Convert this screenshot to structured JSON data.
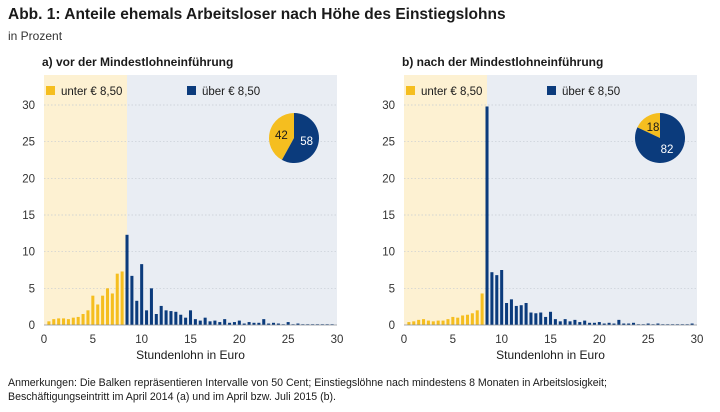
{
  "header": {
    "title": "Abb. 1: Anteile ehemals Arbeitsloser nach Höhe des Einstiegslohns",
    "subtitle": "in Prozent"
  },
  "notes": {
    "line1": "Anmerkungen: Die Balken repräsentieren Intervalle von 50 Cent; Einstiegslöhne nach mindestens 8 Monaten in Arbeitslosigkeit;",
    "line2": "Beschäftigungseintritt im April 2014 (a) und im April bzw. Juli 2015 (b)."
  },
  "colors": {
    "below": "#f5be1f",
    "above": "#0b3b7c",
    "shade_below": "#fdf1d2",
    "shade_above": "#e9edf3",
    "grid": "#c5cbd3"
  },
  "chart_data": [
    {
      "type": "bar",
      "title": "a) vor der Mindestlohneinführung",
      "xlabel": "Stundenlohn in Euro",
      "ylabel": "",
      "xlim": [
        0,
        30
      ],
      "ylim": [
        0,
        30
      ],
      "xticks": [
        0,
        5,
        10,
        15,
        20,
        25,
        30
      ],
      "yticks": [
        0,
        5,
        10,
        15,
        20,
        25,
        30
      ],
      "threshold": 8.5,
      "legend": [
        {
          "label": "unter € 8,50",
          "color": "#f5be1f"
        },
        {
          "label": "über € 8,50",
          "color": "#0b3b7c"
        }
      ],
      "pie": [
        {
          "label": "42",
          "value": 42,
          "color": "#f5be1f"
        },
        {
          "label": "58",
          "value": 58,
          "color": "#0b3b7c"
        }
      ],
      "x": [
        0.5,
        1.0,
        1.5,
        2.0,
        2.5,
        3.0,
        3.5,
        4.0,
        4.5,
        5.0,
        5.5,
        6.0,
        6.5,
        7.0,
        7.5,
        8.0,
        8.5,
        9.0,
        9.5,
        10.0,
        10.5,
        11.0,
        11.5,
        12.0,
        12.5,
        13.0,
        13.5,
        14.0,
        14.5,
        15.0,
        15.5,
        16.0,
        16.5,
        17.0,
        17.5,
        18.0,
        18.5,
        19.0,
        19.5,
        20.0,
        20.5,
        21.0,
        21.5,
        22.0,
        22.5,
        23.0,
        23.5,
        24.0,
        24.5,
        25.0,
        25.5,
        26.0,
        26.5,
        27.0,
        27.5,
        28.0,
        28.5,
        29.0,
        29.5
      ],
      "values": [
        0.5,
        0.8,
        0.9,
        0.9,
        0.8,
        1.0,
        1.1,
        1.5,
        2.0,
        4.0,
        2.8,
        4.0,
        5.0,
        4.3,
        7.0,
        7.3,
        12.3,
        6.7,
        3.3,
        8.3,
        2.0,
        5.0,
        1.5,
        2.6,
        2.0,
        1.9,
        1.8,
        1.4,
        1.0,
        2.0,
        0.8,
        0.6,
        1.0,
        0.5,
        0.6,
        0.4,
        0.8,
        0.3,
        0.4,
        0.6,
        0.2,
        0.4,
        0.3,
        0.3,
        0.8,
        0.2,
        0.3,
        0.2,
        0.1,
        0.4,
        0.1,
        0.2,
        0.1,
        0.1,
        0.1,
        0.1,
        0.1,
        0.1,
        0.1
      ]
    },
    {
      "type": "bar",
      "title": "b) nach der Mindestlohneinführung",
      "xlabel": "Stundenlohn in Euro",
      "ylabel": "",
      "xlim": [
        0,
        30
      ],
      "ylim": [
        0,
        30
      ],
      "xticks": [
        0,
        5,
        10,
        15,
        20,
        25,
        30
      ],
      "yticks": [
        0,
        5,
        10,
        15,
        20,
        25,
        30
      ],
      "threshold": 8.5,
      "legend": [
        {
          "label": "unter € 8,50",
          "color": "#f5be1f"
        },
        {
          "label": "über € 8,50",
          "color": "#0b3b7c"
        }
      ],
      "pie": [
        {
          "label": "18",
          "value": 18,
          "color": "#f5be1f"
        },
        {
          "label": "82",
          "value": 82,
          "color": "#0b3b7c"
        }
      ],
      "x": [
        0.5,
        1.0,
        1.5,
        2.0,
        2.5,
        3.0,
        3.5,
        4.0,
        4.5,
        5.0,
        5.5,
        6.0,
        6.5,
        7.0,
        7.5,
        8.0,
        8.5,
        9.0,
        9.5,
        10.0,
        10.5,
        11.0,
        11.5,
        12.0,
        12.5,
        13.0,
        13.5,
        14.0,
        14.5,
        15.0,
        15.5,
        16.0,
        16.5,
        17.0,
        17.5,
        18.0,
        18.5,
        19.0,
        19.5,
        20.0,
        20.5,
        21.0,
        21.5,
        22.0,
        22.5,
        23.0,
        23.5,
        24.0,
        24.5,
        25.0,
        25.5,
        26.0,
        26.5,
        27.0,
        27.5,
        28.0,
        28.5,
        29.0,
        29.5
      ],
      "values": [
        0.4,
        0.5,
        0.7,
        0.8,
        0.6,
        0.5,
        0.6,
        0.6,
        0.8,
        1.1,
        1.0,
        1.3,
        1.4,
        1.6,
        2.0,
        4.3,
        29.8,
        7.2,
        6.8,
        7.5,
        3.0,
        3.5,
        2.6,
        2.7,
        3.0,
        1.7,
        1.6,
        1.7,
        1.1,
        1.8,
        0.8,
        0.5,
        0.8,
        0.5,
        0.7,
        0.4,
        0.6,
        0.3,
        0.3,
        0.4,
        0.2,
        0.3,
        0.2,
        0.7,
        0.2,
        0.2,
        0.3,
        0.1,
        0.1,
        0.2,
        0.1,
        0.2,
        0.1,
        0.1,
        0.1,
        0.1,
        0.1,
        0.1,
        0.2
      ]
    }
  ]
}
